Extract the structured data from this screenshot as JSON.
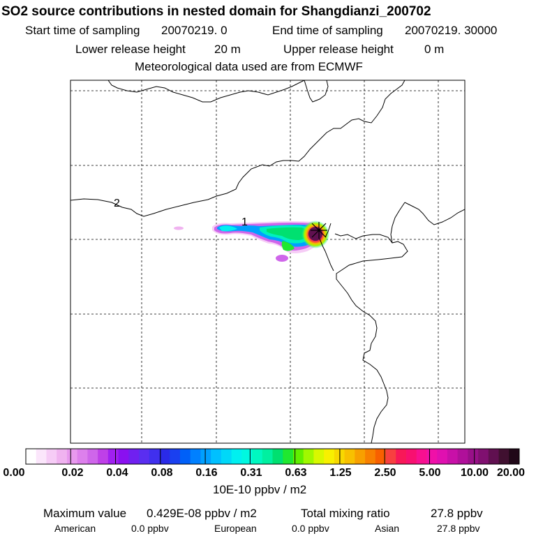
{
  "title": "SO2 source contributions in nested domain for Shangdianzi_200702",
  "header": {
    "start_label": "Start time of sampling",
    "start_value": "20070219.     0",
    "end_label": "End time of sampling",
    "end_value": "20070219. 30000",
    "lower_label": "Lower release height",
    "lower_value": "20 m",
    "upper_label": "Upper release height",
    "upper_value": "0 m",
    "met": "Meteorological data used are from ECMWF"
  },
  "map": {
    "contour_labels": [
      "2",
      "1"
    ],
    "receptor_marker": "x-cross"
  },
  "colorbar": {
    "ticks": [
      "0.00",
      "0.02",
      "0.04",
      "0.08",
      "0.16",
      "0.31",
      "0.63",
      "1.25",
      "2.50",
      "5.00",
      "10.00",
      "20.00"
    ],
    "unit": "10E-10 ppbv / m2",
    "colors": [
      "#ffffff",
      "#fbe6fb",
      "#f6ccf6",
      "#f0b3f0",
      "#e899ee",
      "#dd80ec",
      "#cf66ea",
      "#bf40e8",
      "#a020f0",
      "#8a10f0",
      "#7020f0",
      "#5a2ef0",
      "#4030ee",
      "#2a2ae8",
      "#1a40f0",
      "#0060f8",
      "#0080ff",
      "#00a0ff",
      "#00c0ff",
      "#00d8f8",
      "#00f0f0",
      "#00f8e0",
      "#00f8c0",
      "#00f0a0",
      "#00e070",
      "#20e830",
      "#60f000",
      "#a0f800",
      "#d8f800",
      "#f8f000",
      "#f8d800",
      "#f8c000",
      "#f8a000",
      "#f88000",
      "#f86000",
      "#f84040",
      "#f81858",
      "#f81070",
      "#f81090",
      "#f010a8",
      "#e010b0",
      "#c810a8",
      "#b0109a",
      "#981088",
      "#801070",
      "#601050",
      "#401030",
      "#200818"
    ]
  },
  "stats": {
    "max_label": "Maximum value",
    "max_value": "0.429E-08 ppbv / m2",
    "total_label": "Total mixing ratio",
    "total_value": "27.8 ppbv",
    "american_label": "American",
    "american_value": "0.0 ppbv",
    "european_label": "European",
    "european_value": "0.0 ppbv",
    "asian_label": "Asian",
    "asian_value": "27.8 ppbv"
  }
}
